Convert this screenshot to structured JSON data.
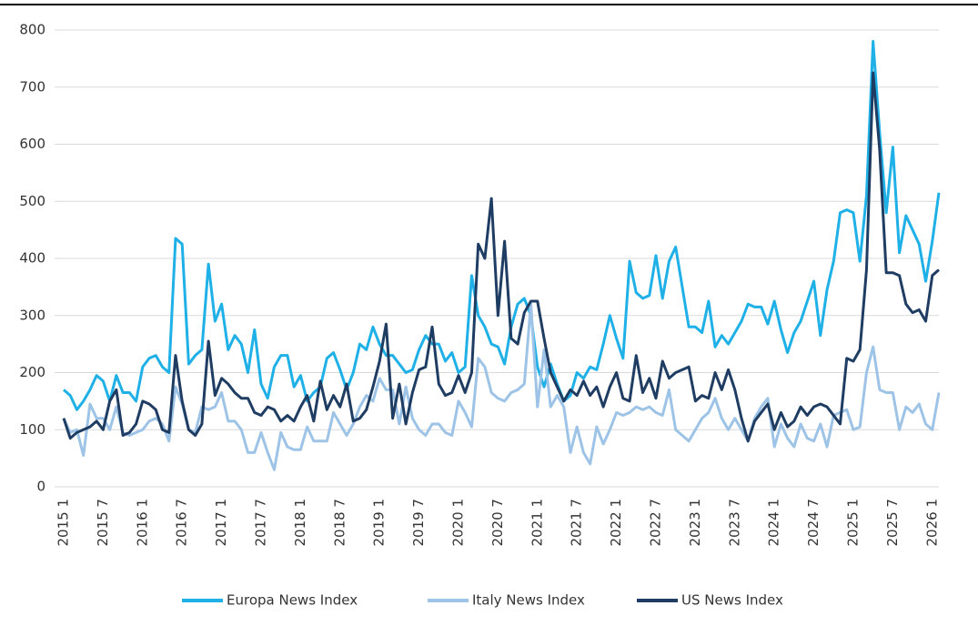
{
  "chart_data": {
    "type": "line",
    "categories": [
      "2015 1",
      null,
      null,
      null,
      null,
      null,
      "2015 7",
      null,
      null,
      null,
      null,
      null,
      "2016 1",
      null,
      null,
      null,
      null,
      null,
      "2016 7",
      null,
      null,
      null,
      null,
      null,
      "2017 1",
      null,
      null,
      null,
      null,
      null,
      "2017 7",
      null,
      null,
      null,
      null,
      null,
      "2018 1",
      null,
      null,
      null,
      null,
      null,
      "2018 7",
      null,
      null,
      null,
      null,
      null,
      "2019 1",
      null,
      null,
      null,
      null,
      null,
      "2019 7",
      null,
      null,
      null,
      null,
      null,
      "2020 1",
      null,
      null,
      null,
      null,
      null,
      "2020 7",
      null,
      null,
      null,
      null,
      null,
      "2021 1",
      null,
      null,
      null,
      null,
      null,
      "2021 7",
      null,
      null,
      null,
      null,
      null,
      "2022 1",
      null,
      null,
      null,
      null,
      null,
      "2022 7",
      null,
      null,
      null,
      null,
      null,
      "2023 1",
      null,
      null,
      null,
      null,
      null,
      "2023 7",
      null,
      null,
      null,
      null,
      null,
      "2024 1",
      null,
      null,
      null,
      null,
      null,
      "2024 7",
      null,
      null,
      null,
      null,
      null,
      "2025 1",
      null,
      null,
      null,
      null,
      null,
      "2025 7",
      null,
      null,
      null,
      null,
      null,
      "2026 1",
      null
    ],
    "series": [
      {
        "name": "Europa News Index",
        "color": "#1eb0e6",
        "values": [
          170,
          160,
          135,
          150,
          170,
          195,
          185,
          150,
          195,
          165,
          165,
          150,
          210,
          225,
          230,
          210,
          200,
          435,
          425,
          215,
          230,
          240,
          390,
          290,
          320,
          240,
          265,
          250,
          200,
          275,
          180,
          155,
          210,
          230,
          230,
          175,
          195,
          150,
          165,
          175,
          225,
          235,
          205,
          170,
          200,
          250,
          240,
          280,
          250,
          230,
          230,
          215,
          200,
          205,
          240,
          265,
          250,
          250,
          220,
          235,
          200,
          210,
          370,
          300,
          280,
          250,
          245,
          215,
          280,
          320,
          330,
          300,
          210,
          175,
          215,
          180,
          150,
          160,
          200,
          190,
          210,
          205,
          250,
          300,
          260,
          225,
          395,
          340,
          330,
          335,
          405,
          330,
          395,
          420,
          350,
          280,
          280,
          270,
          325,
          245,
          265,
          250,
          270,
          290,
          320,
          315,
          315,
          285,
          325,
          275,
          235,
          270,
          290,
          325,
          360,
          265,
          345,
          395,
          480,
          485,
          480,
          395,
          510,
          780,
          620,
          480,
          595,
          410,
          475,
          450,
          425,
          360,
          430,
          515
        ]
      },
      {
        "name": "Italy News Index",
        "color": "#9dc3e6",
        "values": [
          120,
          95,
          100,
          55,
          145,
          120,
          120,
          100,
          140,
          95,
          90,
          95,
          100,
          115,
          120,
          110,
          80,
          175,
          145,
          100,
          95,
          140,
          135,
          140,
          165,
          115,
          115,
          100,
          60,
          60,
          95,
          60,
          30,
          95,
          70,
          65,
          65,
          105,
          80,
          80,
          80,
          130,
          110,
          90,
          110,
          140,
          160,
          150,
          190,
          170,
          170,
          110,
          175,
          120,
          100,
          90,
          110,
          110,
          95,
          90,
          150,
          130,
          105,
          225,
          210,
          165,
          155,
          150,
          165,
          170,
          180,
          320,
          140,
          240,
          140,
          160,
          140,
          60,
          105,
          60,
          40,
          105,
          75,
          100,
          130,
          125,
          130,
          140,
          135,
          140,
          130,
          125,
          170,
          100,
          90,
          80,
          100,
          120,
          130,
          155,
          120,
          100,
          120,
          100,
          80,
          120,
          140,
          155,
          70,
          110,
          85,
          70,
          110,
          85,
          80,
          110,
          70,
          125,
          130,
          135,
          100,
          105,
          200,
          245,
          170,
          165,
          165,
          100,
          140,
          130,
          145,
          110,
          100,
          165
        ]
      },
      {
        "name": "US News Index",
        "color": "#1f3d63",
        "values": [
          120,
          85,
          95,
          100,
          105,
          115,
          100,
          150,
          170,
          90,
          95,
          110,
          150,
          145,
          135,
          100,
          95,
          230,
          150,
          100,
          90,
          110,
          255,
          160,
          190,
          180,
          165,
          155,
          155,
          130,
          125,
          140,
          135,
          115,
          125,
          115,
          140,
          160,
          115,
          185,
          135,
          160,
          140,
          180,
          115,
          120,
          135,
          175,
          220,
          285,
          120,
          180,
          110,
          165,
          205,
          210,
          280,
          180,
          160,
          165,
          195,
          165,
          200,
          425,
          400,
          505,
          300,
          430,
          260,
          250,
          305,
          325,
          325,
          260,
          200,
          175,
          150,
          170,
          160,
          185,
          160,
          175,
          140,
          175,
          200,
          155,
          150,
          230,
          165,
          190,
          155,
          220,
          190,
          200,
          205,
          210,
          150,
          160,
          155,
          200,
          170,
          205,
          170,
          120,
          80,
          115,
          130,
          145,
          100,
          130,
          105,
          115,
          140,
          125,
          140,
          145,
          140,
          125,
          110,
          225,
          220,
          240,
          380,
          725,
          590,
          375,
          375,
          370,
          320,
          305,
          310,
          290,
          370,
          380
        ]
      }
    ],
    "ylim": [
      0,
      800
    ],
    "yticks": [
      0,
      100,
      200,
      300,
      400,
      500,
      600,
      700,
      800
    ],
    "grid": true,
    "legend": "bottom"
  }
}
